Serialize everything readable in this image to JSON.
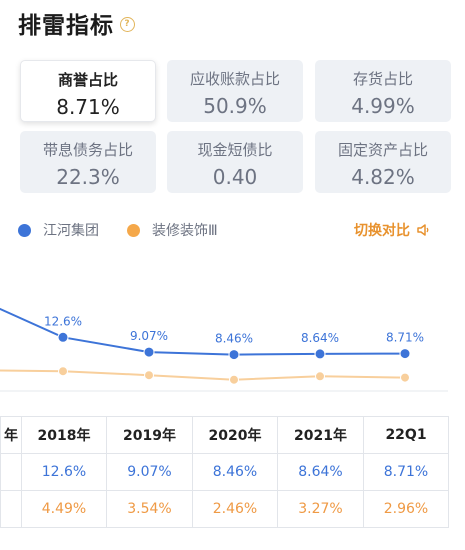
{
  "page": {
    "title": "排雷指标",
    "help_icon": "?"
  },
  "metrics": [
    {
      "label": "商誉占比",
      "value": "8.71%",
      "selected": true
    },
    {
      "label": "应收账款占比",
      "value": "50.9%",
      "selected": false
    },
    {
      "label": "存货占比",
      "value": "4.99%",
      "selected": false
    },
    {
      "label": "带息债务占比",
      "value": "22.3%",
      "selected": false
    },
    {
      "label": "现金短债比",
      "value": "0.40",
      "selected": false
    },
    {
      "label": "固定资产占比",
      "value": "4.82%",
      "selected": false
    }
  ],
  "legend": [
    {
      "name": "江河集团",
      "color": "#3d74d8"
    },
    {
      "name": "装修装饰Ⅲ",
      "color": "#f5a84a"
    }
  ],
  "switch": {
    "label": "切换对比",
    "icon": "speaker-icon"
  },
  "chart_data": {
    "type": "line",
    "x": [
      "2018年",
      "2019年",
      "2020年",
      "2021年",
      "22Q1"
    ],
    "series": [
      {
        "name": "江河集团",
        "color": "#3d74d8",
        "values": [
          12.6,
          9.07,
          8.46,
          8.64,
          8.71
        ],
        "labels": [
          "12.6%",
          "9.07%",
          "8.46%",
          "8.64%",
          "8.71%"
        ],
        "show_labels": true
      },
      {
        "name": "装修装饰Ⅲ",
        "color": "#f8cf9c",
        "values": [
          4.49,
          3.54,
          2.46,
          3.27,
          2.96
        ],
        "labels": [
          "4.49%",
          "3.54%",
          "2.46%",
          "3.27%",
          "2.96%"
        ],
        "show_labels": false
      }
    ],
    "ylim": [
      0,
      22
    ],
    "grid": false
  },
  "table": {
    "first_header": "年",
    "headers": [
      "2018年",
      "2019年",
      "2020年",
      "2021年",
      "22Q1"
    ],
    "rows": [
      [
        "12.6%",
        "9.07%",
        "8.46%",
        "8.64%",
        "8.71%"
      ],
      [
        "4.49%",
        "3.54%",
        "2.46%",
        "3.27%",
        "2.96%"
      ]
    ]
  }
}
